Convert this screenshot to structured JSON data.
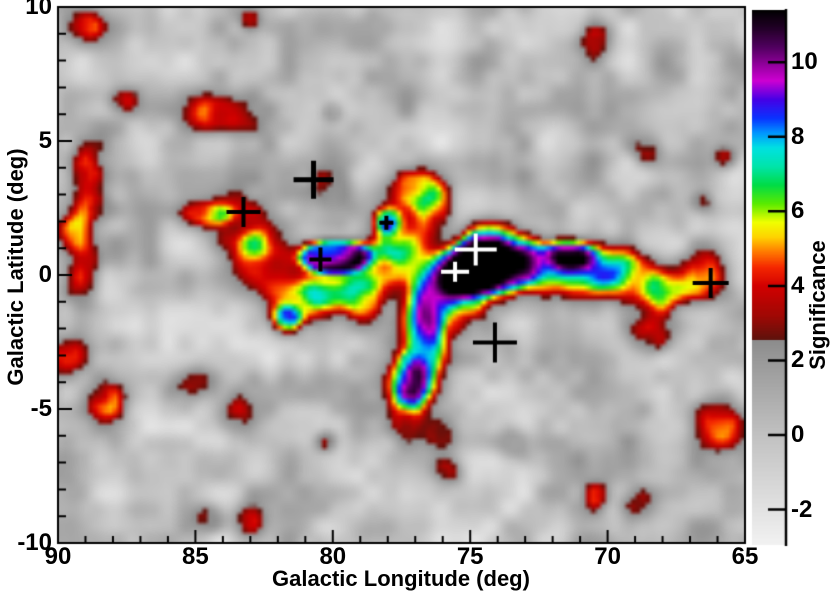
{
  "figure": {
    "background": "#ffffff",
    "frame_color": "#000000",
    "text_color": "#000000"
  },
  "chart_data": {
    "type": "heatmap",
    "title": "",
    "xlabel": "Galactic Longitude (deg)",
    "ylabel": "Galactic Latitude (deg)",
    "x_axis": {
      "min": 65,
      "max": 90,
      "reversed": true,
      "major_ticks": [
        90,
        85,
        80,
        75,
        70,
        65
      ],
      "tick_labels": [
        "90",
        "85",
        "80",
        "75",
        "70",
        "65"
      ],
      "minor_tick_step_deg": 1
    },
    "y_axis": {
      "min": -10,
      "max": 10,
      "major_ticks": [
        10,
        5,
        0,
        -5,
        -10
      ],
      "tick_labels": [
        "10",
        "5",
        "0",
        "-5",
        "-10"
      ],
      "minor_tick_step_deg": 1
    },
    "colorbar": {
      "label": "Significance",
      "vmin": -2.95,
      "vmax": 11.4,
      "ticks": [
        10,
        8,
        6,
        4,
        2,
        0,
        -2
      ],
      "tick_labels": [
        "10",
        "8",
        "6",
        "4",
        "2",
        "0",
        "-2"
      ]
    },
    "colormap_stops": [
      [
        -2.95,
        [
          242,
          242,
          242
        ]
      ],
      [
        -2.0,
        [
          226,
          226,
          226
        ]
      ],
      [
        0.0,
        [
          193,
          193,
          193
        ]
      ],
      [
        2.0,
        [
          153,
          153,
          153
        ]
      ],
      [
        2.54,
        [
          140,
          140,
          140
        ]
      ],
      [
        2.56,
        [
          95,
          18,
          12
        ]
      ],
      [
        3.2,
        [
          160,
          8,
          4
        ]
      ],
      [
        4.0,
        [
          210,
          0,
          0
        ]
      ],
      [
        4.5,
        [
          245,
          40,
          0
        ]
      ],
      [
        4.9,
        [
          255,
          120,
          0
        ]
      ],
      [
        5.3,
        [
          255,
          210,
          0
        ]
      ],
      [
        5.7,
        [
          240,
          255,
          0
        ]
      ],
      [
        6.2,
        [
          90,
          235,
          0
        ]
      ],
      [
        6.7,
        [
          0,
          220,
          70
        ]
      ],
      [
        7.2,
        [
          0,
          228,
          170
        ]
      ],
      [
        7.7,
        [
          0,
          225,
          225
        ]
      ],
      [
        8.1,
        [
          0,
          150,
          255
        ]
      ],
      [
        8.5,
        [
          10,
          50,
          255
        ]
      ],
      [
        9.0,
        [
          70,
          0,
          230
        ]
      ],
      [
        9.5,
        [
          205,
          0,
          210
        ]
      ],
      [
        9.9,
        [
          150,
          0,
          160
        ]
      ],
      [
        10.4,
        [
          80,
          0,
          95
        ]
      ],
      [
        10.9,
        [
          35,
          0,
          40
        ]
      ],
      [
        11.4,
        [
          0,
          0,
          0
        ]
      ]
    ],
    "noise": {
      "scale1_deg": 1.35,
      "scale2_deg": 0.62,
      "weight2": 0.5,
      "amplitude": 2.62,
      "offset1": [
        3.7,
        9.2
      ],
      "offset2": [
        17.3,
        5.1
      ]
    },
    "sources": [
      {
        "l": 75.05,
        "b": 0.05,
        "a": 11.9,
        "rl": 0.2,
        "rb": 0.2,
        "w": 3.3
      },
      {
        "l": 76.35,
        "b": -1.05,
        "a": 6.3,
        "rl": 0.3,
        "rb": 0.55,
        "w": 2.0
      },
      {
        "l": 74.5,
        "b": 1.3,
        "a": 4.6,
        "rl": 0.3,
        "rb": 0.3,
        "w": 1.5
      },
      {
        "l": 74.0,
        "b": 0.4,
        "a": 4.2,
        "rl": 0.45,
        "rb": 0.4,
        "w": 1.5
      },
      {
        "l": 79.95,
        "b": 0.7,
        "a": 7.9,
        "rl": 0.85,
        "rb": 0.42,
        "w": 0.46
      },
      {
        "l": 80.1,
        "b": -0.5,
        "a": 4.0,
        "rl": 0.4,
        "rb": 0.35,
        "w": 1.3
      },
      {
        "l": 81.2,
        "b": -1.1,
        "a": 4.2,
        "rl": 0.45,
        "rb": 0.35,
        "w": 1.3
      },
      {
        "l": 81.7,
        "b": -1.7,
        "a": 5.0,
        "rl": 0.18,
        "rb": 0.18,
        "w": 1.8
      },
      {
        "l": 82.4,
        "b": 0.35,
        "a": 4.0,
        "rl": 0.55,
        "rb": 0.45,
        "w": 1.2
      },
      {
        "l": 83.3,
        "b": 1.95,
        "a": 3.6,
        "rl": 0.6,
        "rb": 0.55,
        "w": 1.0
      },
      {
        "l": 84.6,
        "b": 2.3,
        "a": 3.4,
        "rl": 0.45,
        "rb": 0.22,
        "w": 1.0
      },
      {
        "l": 80.0,
        "b": 3.3,
        "a": 3.7,
        "rl": 0.35,
        "rb": 0.6,
        "w": 1.1
      },
      {
        "l": 78.05,
        "b": 2.05,
        "a": 5.7,
        "rl": 0.12,
        "rb": 0.12,
        "w": 2.3
      },
      {
        "l": 77.0,
        "b": 3.2,
        "a": 3.7,
        "rl": 0.55,
        "rb": 0.35,
        "w": 1.0
      },
      {
        "l": 76.3,
        "b": 2.4,
        "a": 3.5,
        "rl": 0.3,
        "rb": 0.45,
        "w": 1.1
      },
      {
        "l": 78.3,
        "b": 0.35,
        "a": 3.9,
        "rl": 0.5,
        "rb": 0.5,
        "w": 1.1
      },
      {
        "l": 77.6,
        "b": 1.3,
        "a": 3.6,
        "rl": 0.4,
        "rb": 0.4,
        "w": 1.1
      },
      {
        "l": 78.9,
        "b": -0.9,
        "a": 3.4,
        "rl": 0.3,
        "rb": 0.35,
        "w": 1.2
      },
      {
        "l": 77.2,
        "b": -4.0,
        "a": 6.2,
        "rl": 0.3,
        "rb": 0.32,
        "w": 1.5
      },
      {
        "l": 76.7,
        "b": -2.5,
        "a": 4.0,
        "rl": 0.28,
        "rb": 0.8,
        "w": 1.2
      },
      {
        "l": 77.3,
        "b": -5.2,
        "a": 3.7,
        "rl": 0.28,
        "rb": 0.55,
        "w": 1.1
      },
      {
        "l": 76.1,
        "b": -5.9,
        "a": 3.3,
        "rl": 0.25,
        "rb": 0.3,
        "w": 1.2
      },
      {
        "l": 73.4,
        "b": 0.3,
        "a": 4.1,
        "rl": 0.5,
        "rb": 0.45,
        "w": 1.2
      },
      {
        "l": 72.4,
        "b": 0.5,
        "a": 4.0,
        "rl": 0.5,
        "rb": 0.4,
        "w": 1.2
      },
      {
        "l": 71.4,
        "b": 0.8,
        "a": 5.4,
        "rl": 0.3,
        "rb": 0.18,
        "w": 1.6
      },
      {
        "l": 70.9,
        "b": -0.1,
        "a": 3.7,
        "rl": 0.45,
        "rb": 0.4,
        "w": 1.2
      },
      {
        "l": 70.2,
        "b": 0.4,
        "a": 3.8,
        "rl": 0.5,
        "rb": 0.4,
        "w": 1.2
      },
      {
        "l": 69.0,
        "b": -0.1,
        "a": 3.7,
        "rl": 0.5,
        "rb": 0.45,
        "w": 1.1
      },
      {
        "l": 67.9,
        "b": -0.6,
        "a": 3.5,
        "rl": 0.35,
        "rb": 0.35,
        "w": 1.1
      },
      {
        "l": 66.5,
        "b": 0.0,
        "a": 3.9,
        "rl": 0.4,
        "rb": 0.5,
        "w": 1.0
      },
      {
        "l": 68.4,
        "b": -2.3,
        "a": 3.7,
        "rl": 0.3,
        "rb": 0.3,
        "w": 1.2
      },
      {
        "l": 65.9,
        "b": -5.4,
        "a": 3.8,
        "rl": 0.35,
        "rb": 0.45,
        "w": 1.1
      },
      {
        "l": 88.9,
        "b": 9.3,
        "a": 3.3,
        "rl": 0.15,
        "rb": 0.15,
        "w": 2.2
      },
      {
        "l": 83.0,
        "b": 9.5,
        "a": 3.2,
        "rl": 0.12,
        "rb": 0.12,
        "w": 2.0
      },
      {
        "l": 84.2,
        "b": 6.0,
        "a": 4.1,
        "rl": 0.42,
        "rb": 0.28,
        "w": 1.4
      },
      {
        "l": 87.7,
        "b": 6.5,
        "a": 3.2,
        "rl": 0.15,
        "rb": 0.15,
        "w": 1.8
      },
      {
        "l": 80.0,
        "b": 6.1,
        "a": 2.9,
        "rl": 0.12,
        "rb": 0.12,
        "w": 2.0
      },
      {
        "l": 70.4,
        "b": 8.8,
        "a": 3.5,
        "rl": 0.18,
        "rb": 0.18,
        "w": 2.0
      },
      {
        "l": 68.6,
        "b": 4.7,
        "a": 3.4,
        "rl": 0.15,
        "rb": 0.15,
        "w": 2.2
      },
      {
        "l": 65.7,
        "b": 4.4,
        "a": 3.1,
        "rl": 0.12,
        "rb": 0.12,
        "w": 2.2
      },
      {
        "l": 66.6,
        "b": 2.75,
        "a": 3.1,
        "rl": 0.12,
        "rb": 0.12,
        "w": 2.0
      },
      {
        "l": 89.0,
        "b": 3.9,
        "a": 3.4,
        "rl": 0.2,
        "rb": 0.3,
        "w": 1.6
      },
      {
        "l": 88.6,
        "b": 2.5,
        "a": 3.4,
        "rl": 0.25,
        "rb": 0.2,
        "w": 1.6
      },
      {
        "l": 89.4,
        "b": 1.6,
        "a": 3.2,
        "rl": 0.2,
        "rb": 0.25,
        "w": 1.6
      },
      {
        "l": 89.0,
        "b": 0.0,
        "a": 3.2,
        "rl": 0.2,
        "rb": 0.4,
        "w": 1.5
      },
      {
        "l": 88.25,
        "b": -4.7,
        "a": 3.5,
        "rl": 0.25,
        "rb": 0.25,
        "w": 1.6
      },
      {
        "l": 89.6,
        "b": -3.0,
        "a": 3.3,
        "rl": 0.25,
        "rb": 0.25,
        "w": 1.5
      },
      {
        "l": 85.0,
        "b": -4.0,
        "a": 3.4,
        "rl": 0.28,
        "rb": 0.22,
        "w": 1.5
      },
      {
        "l": 83.5,
        "b": -5.3,
        "a": 3.6,
        "rl": 0.3,
        "rb": 0.25,
        "w": 1.5
      },
      {
        "l": 84.5,
        "b": -9.1,
        "a": 3.3,
        "rl": 0.18,
        "rb": 0.18,
        "w": 1.8
      },
      {
        "l": 83.1,
        "b": -9.2,
        "a": 3.4,
        "rl": 0.2,
        "rb": 0.2,
        "w": 1.8
      },
      {
        "l": 80.2,
        "b": -6.2,
        "a": 3.0,
        "rl": 0.12,
        "rb": 0.12,
        "w": 2.0
      },
      {
        "l": 75.9,
        "b": -7.3,
        "a": 3.3,
        "rl": 0.15,
        "rb": 0.15,
        "w": 2.0
      },
      {
        "l": 73.4,
        "b": -6.3,
        "a": 3.5,
        "rl": 0.2,
        "rb": 0.2,
        "w": 1.8
      },
      {
        "l": 68.9,
        "b": -8.5,
        "a": 3.5,
        "rl": 0.2,
        "rb": 0.2,
        "w": 1.8
      },
      {
        "l": 70.4,
        "b": -8.2,
        "a": 3.1,
        "rl": 0.15,
        "rb": 0.15,
        "w": 1.8
      }
    ],
    "markers": [
      {
        "l": 83.25,
        "b": 2.35,
        "color": "#000000",
        "hw": 17,
        "hh": 15,
        "lw": 4
      },
      {
        "l": 80.7,
        "b": 3.55,
        "color": "#000000",
        "hw": 20,
        "hh": 19,
        "lw": 5
      },
      {
        "l": 78.05,
        "b": 1.95,
        "color": "#000000",
        "hw": 7,
        "hh": 7,
        "lw": 4
      },
      {
        "l": 80.45,
        "b": 0.58,
        "color": "#000000",
        "hw": 11,
        "hh": 12,
        "lw": 4
      },
      {
        "l": 75.55,
        "b": 0.12,
        "color": "#ffffff",
        "hw": 14,
        "hh": 10,
        "lw": 4
      },
      {
        "l": 74.8,
        "b": 0.95,
        "color": "#ffffff",
        "hw": 21,
        "hh": 16,
        "lw": 4
      },
      {
        "l": 74.1,
        "b": -2.52,
        "color": "#000000",
        "hw": 22,
        "hh": 20,
        "lw": 4
      },
      {
        "l": 66.25,
        "b": -0.3,
        "color": "#000000",
        "hw": 18,
        "hh": 15,
        "lw": 4
      }
    ]
  }
}
